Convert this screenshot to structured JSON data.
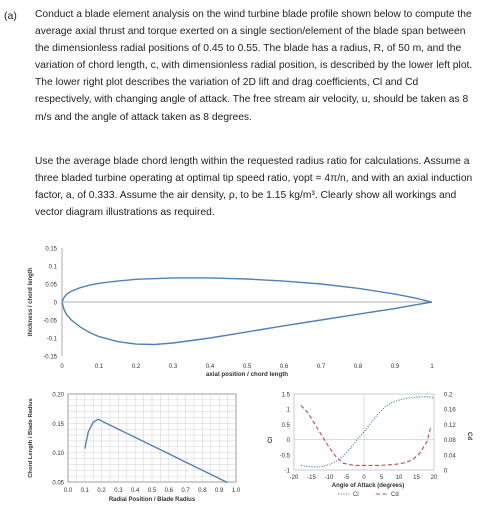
{
  "question": {
    "label": "(a)",
    "paragraph1": "Conduct a blade element analysis on the wind turbine blade profile shown below to compute the average axial thrust and torque exerted on a single section/element of the blade span between the dimensionless radial positions of 0.45 to 0.55. The blade has a radius, R, of 50 m, and the variation of chord length, c, with dimensionless radial position, is described by the lower left plot. The lower right plot describes the variation of 2D lift and drag coefficients, Cl and Cd respectively, with changing angle of attack. The free stream air velocity, u, should be taken as 8 m/s and the angle of attack taken as 8 degrees.",
    "paragraph2": "Use the average blade chord length within the requested radius ratio for calculations. Assume a three bladed turbine operating at optimal tip speed ratio, γopt = 4π/n, and with an axial induction factor, a, of 0.333. Assume the air density, ρ, to be 1.15 kg/m³. Clearly show all workings and vector diagram illustrations as required."
  },
  "chart_data": [
    {
      "type": "line",
      "title": "",
      "xlabel": "axial position / chord length",
      "ylabel": "thickness / chord length",
      "xlim": [
        0,
        1
      ],
      "ylim": [
        -0.15,
        0.15
      ],
      "x_ticks": [
        "0",
        "0.1",
        "0.2",
        "0.3",
        "0.4",
        "0.5",
        "0.6",
        "0.7",
        "0.8",
        "0.9",
        "1"
      ],
      "y_ticks": [
        "0.15",
        "0.1",
        "0.05",
        "0",
        "-0.05",
        "-0.1",
        "-0.15"
      ],
      "series": [
        {
          "x": [
            1.0,
            0.95,
            0.9,
            0.8,
            0.7,
            0.6,
            0.5,
            0.4,
            0.3,
            0.2,
            0.15,
            0.1,
            0.075,
            0.05,
            0.025,
            0.0125,
            0.005,
            0.0
          ],
          "y": [
            0.0,
            0.012,
            0.022,
            0.038,
            0.05,
            0.058,
            0.064,
            0.067,
            0.067,
            0.063,
            0.058,
            0.052,
            0.047,
            0.04,
            0.03,
            0.022,
            0.012,
            0.0
          ]
        },
        {
          "x": [
            0.0,
            0.005,
            0.0125,
            0.025,
            0.05,
            0.075,
            0.1,
            0.15,
            0.2,
            0.25,
            0.3,
            0.4,
            0.5,
            0.6,
            0.7,
            0.8,
            0.9,
            0.95,
            1.0
          ],
          "y": [
            0.0,
            -0.02,
            -0.035,
            -0.05,
            -0.07,
            -0.085,
            -0.096,
            -0.11,
            -0.117,
            -0.118,
            -0.114,
            -0.1,
            -0.083,
            -0.066,
            -0.05,
            -0.034,
            -0.018,
            -0.009,
            0.0
          ]
        }
      ],
      "colors": [
        "#4f81bd"
      ],
      "grid": false
    },
    {
      "type": "line",
      "title": "",
      "xlabel": "Radial Position / Blade Radius",
      "ylabel": "Chord Length / Blade Radius",
      "xlim": [
        0,
        1
      ],
      "ylim": [
        0.05,
        0.2
      ],
      "x_ticks": [
        "0.0",
        "0.1",
        "0.2",
        "0.3",
        "0.4",
        "0.5",
        "0.6",
        "0.7",
        "0.8",
        "0.9",
        "1.0"
      ],
      "y_ticks": [
        "0.20",
        "0.15",
        "0.10",
        "0.05"
      ],
      "series": [
        {
          "x": [
            0.1,
            0.12,
            0.15,
            0.18,
            0.2,
            0.25,
            0.3,
            0.4,
            0.5,
            0.6,
            0.7,
            0.8,
            0.9,
            0.95
          ],
          "y": [
            0.107,
            0.135,
            0.152,
            0.157,
            0.154,
            0.147,
            0.14,
            0.126,
            0.112,
            0.098,
            0.084,
            0.07,
            0.056,
            0.049
          ]
        }
      ],
      "colors": [
        "#4f81bd"
      ],
      "grid": true
    },
    {
      "type": "line",
      "title": "",
      "xlabel": "Angle of Attack (degrees)",
      "ylabel": "Cl",
      "ylabel_right": "Cd",
      "xlim": [
        -20,
        20
      ],
      "ylim": [
        -1,
        1.5
      ],
      "ylim_right": [
        0,
        0.2
      ],
      "x_ticks": [
        "-20",
        "-15",
        "-10",
        "-5",
        "0",
        "5",
        "10",
        "15",
        "20"
      ],
      "y_ticks": [
        "1.5",
        "1",
        "0.5",
        "0",
        "-0.5",
        "-1"
      ],
      "y_ticks_right": [
        "0.2",
        "0.16",
        "0.12",
        "0.08",
        "0.04",
        "0"
      ],
      "legend": [
        "Cl",
        "Cd"
      ],
      "legend_position": "bottom",
      "series": [
        {
          "name": "Cl",
          "x": [
            -18,
            -16,
            -14,
            -12,
            -10,
            -8,
            -6,
            -4,
            -2,
            0,
            2,
            4,
            6,
            8,
            10,
            12,
            14,
            16,
            18,
            20
          ],
          "y": [
            -0.85,
            -0.88,
            -0.9,
            -0.88,
            -0.82,
            -0.72,
            -0.55,
            -0.3,
            0.0,
            0.25,
            0.55,
            0.85,
            1.08,
            1.22,
            1.3,
            1.36,
            1.38,
            1.4,
            1.41,
            1.37
          ],
          "style": "dotted",
          "axis": "left"
        },
        {
          "name": "Cd",
          "x": [
            -18,
            -16,
            -14,
            -12,
            -10,
            -8,
            -6,
            -4,
            -2,
            0,
            2,
            4,
            6,
            8,
            10,
            12,
            14,
            16,
            18,
            19
          ],
          "y": [
            0.17,
            0.15,
            0.12,
            0.09,
            0.06,
            0.035,
            0.018,
            0.014,
            0.012,
            0.012,
            0.012,
            0.012,
            0.013,
            0.014,
            0.016,
            0.02,
            0.028,
            0.045,
            0.075,
            0.11
          ],
          "style": "dashed",
          "axis": "right"
        }
      ],
      "colors": [
        "#4f81bd",
        "#c0504d"
      ],
      "grid": false
    }
  ]
}
